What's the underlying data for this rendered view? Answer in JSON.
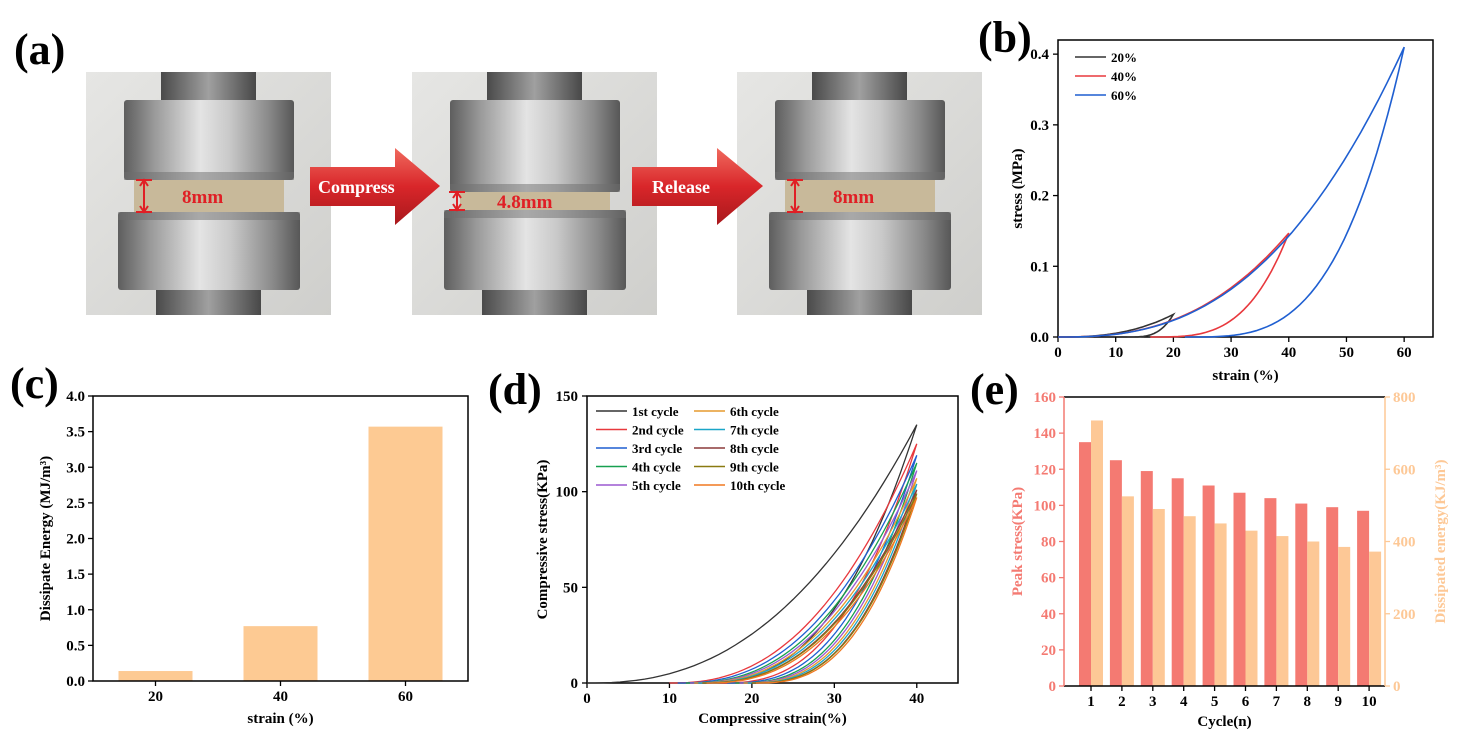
{
  "panels": {
    "a": "(a)",
    "b": "(b)",
    "c": "(c)",
    "d": "(d)",
    "e": "(e)"
  },
  "panel_a": {
    "photos": [
      {
        "dimension": "8mm"
      },
      {
        "dimension": "4.8mm"
      },
      {
        "dimension": "8mm"
      }
    ],
    "arrows": [
      "Compress",
      "Release"
    ],
    "colors": {
      "arrow": "#d9262a",
      "dimension": "#e01f25"
    }
  },
  "chart_data": [
    {
      "panel": "b",
      "type": "line",
      "xlabel": "strain (%)",
      "ylabel": "stress (MPa)",
      "xlim": [
        0,
        65
      ],
      "ylim": [
        0,
        0.42
      ],
      "xticks": [
        0,
        10,
        20,
        30,
        40,
        50,
        60
      ],
      "yticks": [
        0.0,
        0.1,
        0.2,
        0.3,
        0.4
      ],
      "legend_position": "top-left",
      "series": [
        {
          "name": "20%",
          "color": "#333333",
          "max_strain": 20,
          "peak_stress": 0.032,
          "residual_strain": 12
        },
        {
          "name": "40%",
          "color": "#e8383d",
          "max_strain": 40,
          "peak_stress": 0.147,
          "residual_strain": 16
        },
        {
          "name": "60%",
          "color": "#1f5fd1",
          "max_strain": 60,
          "peak_stress": 0.41,
          "residual_strain": 22
        }
      ]
    },
    {
      "panel": "c",
      "type": "bar",
      "xlabel": "strain (%)",
      "ylabel": "Dissipate Energy (MJ/m³)",
      "categories": [
        "20",
        "40",
        "60"
      ],
      "values": [
        0.14,
        0.77,
        3.57
      ],
      "ylim": [
        0,
        4.0
      ],
      "yticks": [
        0.0,
        0.5,
        1.0,
        1.5,
        2.0,
        2.5,
        3.0,
        3.5,
        4.0
      ],
      "bar_color": "#fdca93"
    },
    {
      "panel": "d",
      "type": "line",
      "xlabel": "Compressive strain(%)",
      "ylabel": "Compressive stress(KPa)",
      "xlim": [
        0,
        45
      ],
      "ylim": [
        0,
        150
      ],
      "xticks": [
        0,
        10,
        20,
        30,
        40
      ],
      "yticks": [
        0,
        50,
        100,
        150
      ],
      "legend_position": "top-left",
      "series": [
        {
          "name": "1st cycle",
          "color": "#333333",
          "peak": 135,
          "residual": 13
        },
        {
          "name": "2nd cycle",
          "color": "#e8383d",
          "peak": 125,
          "residual": 16
        },
        {
          "name": "3rd cycle",
          "color": "#1f5fd1",
          "peak": 119,
          "residual": 17
        },
        {
          "name": "4th cycle",
          "color": "#17a050",
          "peak": 115,
          "residual": 18
        },
        {
          "name": "5th cycle",
          "color": "#9b59d0",
          "peak": 111,
          "residual": 18.5
        },
        {
          "name": "6th cycle",
          "color": "#e69a2e",
          "peak": 107,
          "residual": 19
        },
        {
          "name": "7th cycle",
          "color": "#1aa6c8",
          "peak": 104,
          "residual": 19.5
        },
        {
          "name": "8th cycle",
          "color": "#8b3a3a",
          "peak": 101,
          "residual": 20
        },
        {
          "name": "9th cycle",
          "color": "#8a7a10",
          "peak": 99,
          "residual": 20
        },
        {
          "name": "10th cycle",
          "color": "#f07820",
          "peak": 97,
          "residual": 20.5
        }
      ]
    },
    {
      "panel": "e",
      "type": "bar",
      "xlabel": "Cycle(n)",
      "ylabel_left": "Peak stress(KPa)",
      "ylabel_right": "Dissipated energy(KJ/m³)",
      "categories": [
        "1",
        "2",
        "3",
        "4",
        "5",
        "6",
        "7",
        "8",
        "9",
        "10"
      ],
      "series": [
        {
          "name": "Peak stress(KPa)",
          "axis": "left",
          "color": "#f47a72",
          "values": [
            135,
            125,
            119,
            115,
            111,
            107,
            104,
            101,
            99,
            97
          ]
        },
        {
          "name": "Dissipated energy(KJ/m³)",
          "axis": "right",
          "color": "#fdc896",
          "values": [
            735,
            525,
            490,
            470,
            450,
            430,
            415,
            400,
            385,
            372
          ]
        }
      ],
      "ylim_left": [
        0,
        160
      ],
      "ylim_right": [
        0,
        800
      ],
      "yticks_left": [
        0,
        20,
        40,
        60,
        80,
        100,
        120,
        140,
        160
      ],
      "yticks_right": [
        0,
        200,
        400,
        600,
        800
      ],
      "left_axis_color": "#f47a72",
      "right_axis_color": "#fdc896"
    }
  ]
}
